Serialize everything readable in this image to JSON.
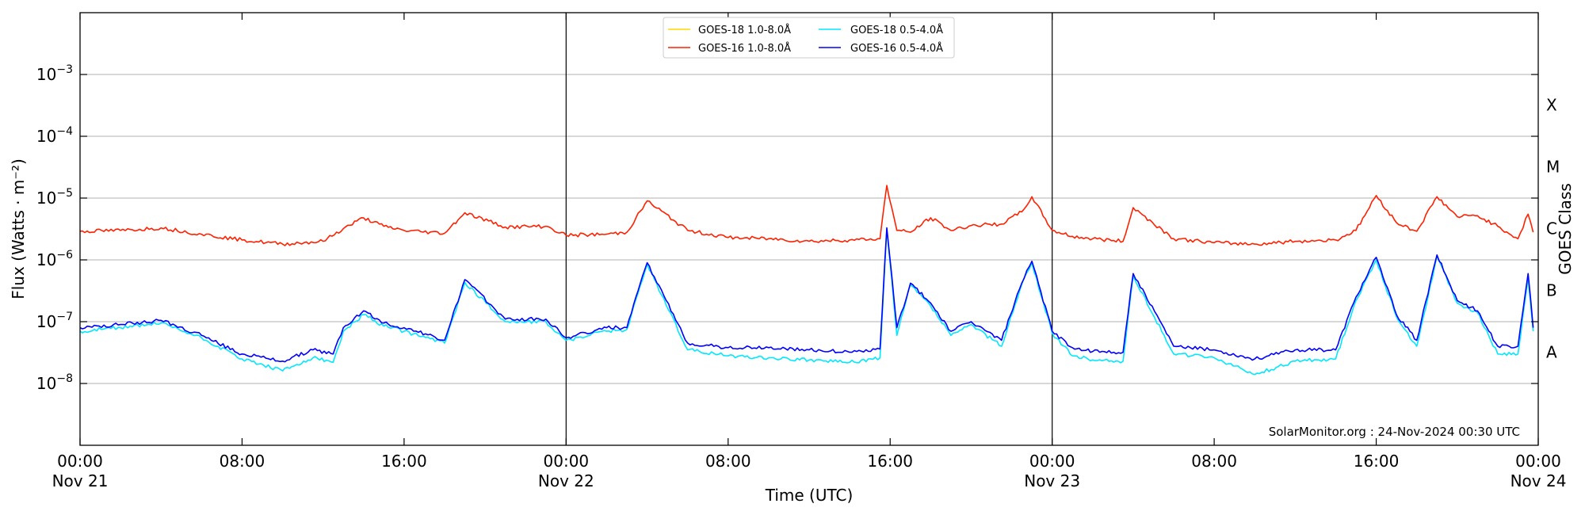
{
  "chart_data": {
    "type": "line",
    "title": "",
    "xlabel": "Time (UTC)",
    "ylabel": "Flux (Watts · m⁻²)",
    "ylabel_right": "GOES Class",
    "yscale": "log",
    "xlim": [
      "2024-11-21T00:00",
      "2024-11-24T00:00"
    ],
    "ylim": [
      1e-09,
      0.01
    ],
    "grid": "horizontal lines at each y decade",
    "legend_placement": "top-center",
    "x_ticks": [
      {
        "time": "2024-11-21T00:00",
        "line1": "00:00",
        "line2": "Nov 21"
      },
      {
        "time": "2024-11-21T08:00",
        "line1": "08:00",
        "line2": ""
      },
      {
        "time": "2024-11-21T16:00",
        "line1": "16:00",
        "line2": ""
      },
      {
        "time": "2024-11-22T00:00",
        "line1": "00:00",
        "line2": "Nov 22"
      },
      {
        "time": "2024-11-22T08:00",
        "line1": "08:00",
        "line2": ""
      },
      {
        "time": "2024-11-22T16:00",
        "line1": "16:00",
        "line2": ""
      },
      {
        "time": "2024-11-23T00:00",
        "line1": "00:00",
        "line2": "Nov 23"
      },
      {
        "time": "2024-11-23T08:00",
        "line1": "08:00",
        "line2": ""
      },
      {
        "time": "2024-11-23T16:00",
        "line1": "16:00",
        "line2": ""
      },
      {
        "time": "2024-11-24T00:00",
        "line1": "00:00",
        "line2": "Nov 24"
      }
    ],
    "y_ticks": [
      {
        "value": 1e-08,
        "mantissa": "10",
        "exp": "−8"
      },
      {
        "value": 1e-07,
        "mantissa": "10",
        "exp": "−7"
      },
      {
        "value": 1e-06,
        "mantissa": "10",
        "exp": "−6"
      },
      {
        "value": 1e-05,
        "mantissa": "10",
        "exp": "−5"
      },
      {
        "value": 0.0001,
        "mantissa": "10",
        "exp": "−4"
      },
      {
        "value": 0.001,
        "mantissa": "10",
        "exp": "−3"
      }
    ],
    "day_boundaries": [
      "2024-11-22T00:00",
      "2024-11-23T00:00"
    ],
    "goes_classes": [
      {
        "label": "A",
        "value": 3.2e-08
      },
      {
        "label": "B",
        "value": 3.2e-07
      },
      {
        "label": "C",
        "value": 3.2e-06
      },
      {
        "label": "M",
        "value": 3.2e-05
      },
      {
        "label": "X",
        "value": 0.00032
      }
    ],
    "series": [
      {
        "name": "GOES-18 1.0-8.0Å",
        "color": "#ffd700",
        "x": [],
        "values": []
      },
      {
        "name": "GOES-16 1.0-8.0Å",
        "color": "#ff2000",
        "x": [
          "2024-11-21T00:00",
          "2024-11-21T02:00",
          "2024-11-21T04:00",
          "2024-11-21T06:00",
          "2024-11-21T08:00",
          "2024-11-21T10:00",
          "2024-11-21T12:00",
          "2024-11-21T13:00",
          "2024-11-21T14:00",
          "2024-11-21T15:00",
          "2024-11-21T16:00",
          "2024-11-21T18:00",
          "2024-11-21T19:00",
          "2024-11-21T21:00",
          "2024-11-21T23:00",
          "2024-11-22T00:00",
          "2024-11-22T02:00",
          "2024-11-22T03:00",
          "2024-11-22T04:00",
          "2024-11-22T06:00",
          "2024-11-22T08:00",
          "2024-11-22T10:00",
          "2024-11-22T12:00",
          "2024-11-22T14:00",
          "2024-11-22T15:30",
          "2024-11-22T15:50",
          "2024-11-22T16:20",
          "2024-11-22T17:00",
          "2024-11-22T18:00",
          "2024-11-22T19:00",
          "2024-11-22T20:00",
          "2024-11-22T21:30",
          "2024-11-22T22:30",
          "2024-11-22T23:00",
          "2024-11-23T00:00",
          "2024-11-23T01:00",
          "2024-11-23T02:00",
          "2024-11-23T03:30",
          "2024-11-23T04:00",
          "2024-11-23T06:00",
          "2024-11-23T08:00",
          "2024-11-23T10:00",
          "2024-11-23T12:00",
          "2024-11-23T14:00",
          "2024-11-23T15:00",
          "2024-11-23T16:00",
          "2024-11-23T17:00",
          "2024-11-23T18:00",
          "2024-11-23T19:00",
          "2024-11-23T20:00",
          "2024-11-23T21:00",
          "2024-11-23T22:00",
          "2024-11-23T23:00",
          "2024-11-23T23:30",
          "2024-11-23T23:45"
        ],
        "values": [
          2.9e-06,
          3e-06,
          3.3e-06,
          2.6e-06,
          2.1e-06,
          1.8e-06,
          2e-06,
          3.2e-06,
          4.8e-06,
          3.5e-06,
          3e-06,
          2.7e-06,
          5.8e-06,
          3.4e-06,
          3.5e-06,
          2.5e-06,
          2.6e-06,
          2.8e-06,
          9e-06,
          3e-06,
          2.3e-06,
          2.2e-06,
          2e-06,
          2.1e-06,
          2.2e-06,
          1.6e-05,
          3e-06,
          2.8e-06,
          4.8e-06,
          3e-06,
          3.6e-06,
          3.8e-06,
          6e-06,
          1.05e-05,
          3e-06,
          2.4e-06,
          2.2e-06,
          2e-06,
          7e-06,
          2.2e-06,
          1.9e-06,
          1.8e-06,
          2e-06,
          2.1e-06,
          3e-06,
          1.1e-05,
          4e-06,
          2.9e-06,
          1.05e-05,
          5e-06,
          5.2e-06,
          3.5e-06,
          2.2e-06,
          5.5e-06,
          2.8e-06
        ]
      },
      {
        "name": "GOES-18 0.5-4.0Å",
        "color": "#00e8ff",
        "x": [
          "2024-11-21T00:00",
          "2024-11-21T02:00",
          "2024-11-21T04:00",
          "2024-11-21T06:00",
          "2024-11-21T08:00",
          "2024-11-21T10:00",
          "2024-11-21T11:30",
          "2024-11-21T12:30",
          "2024-11-21T13:00",
          "2024-11-21T14:00",
          "2024-11-21T15:00",
          "2024-11-21T16:00",
          "2024-11-21T18:00",
          "2024-11-21T19:00",
          "2024-11-21T21:00",
          "2024-11-21T23:00",
          "2024-11-22T00:00",
          "2024-11-22T02:00",
          "2024-11-22T03:00",
          "2024-11-22T04:00",
          "2024-11-22T06:00",
          "2024-11-22T08:00",
          "2024-11-22T10:00",
          "2024-11-22T12:00",
          "2024-11-22T14:00",
          "2024-11-22T15:30",
          "2024-11-22T15:50",
          "2024-11-22T16:20",
          "2024-11-22T17:00",
          "2024-11-22T18:00",
          "2024-11-22T19:00",
          "2024-11-22T20:00",
          "2024-11-22T21:30",
          "2024-11-22T22:30",
          "2024-11-22T23:00",
          "2024-11-23T00:00",
          "2024-11-23T01:00",
          "2024-11-23T02:00",
          "2024-11-23T03:30",
          "2024-11-23T04:00",
          "2024-11-23T06:00",
          "2024-11-23T08:00",
          "2024-11-23T10:00",
          "2024-11-23T12:00",
          "2024-11-23T14:00",
          "2024-11-23T15:00",
          "2024-11-23T16:00",
          "2024-11-23T17:00",
          "2024-11-23T18:00",
          "2024-11-23T19:00",
          "2024-11-23T20:00",
          "2024-11-23T21:00",
          "2024-11-23T22:00",
          "2024-11-23T23:00",
          "2024-11-23T23:30",
          "2024-11-23T23:45"
        ],
        "values": [
          7e-08,
          8e-08,
          9.5e-08,
          5.5e-08,
          2.5e-08,
          1.6e-08,
          2.6e-08,
          2.2e-08,
          7e-08,
          1.3e-07,
          8.5e-08,
          7e-08,
          4.5e-08,
          4.3e-07,
          1e-07,
          1e-07,
          5e-08,
          7e-08,
          7.5e-08,
          8.5e-07,
          3.5e-08,
          2.8e-08,
          2.6e-08,
          2.4e-08,
          2.2e-08,
          2.6e-08,
          3.1e-06,
          6e-08,
          4e-07,
          1.8e-07,
          6e-08,
          9e-08,
          4e-08,
          4e-07,
          9e-07,
          6.5e-08,
          2.8e-08,
          2.4e-08,
          2.3e-08,
          5.5e-07,
          3e-08,
          2.6e-08,
          1.4e-08,
          2.3e-08,
          2.5e-08,
          2.2e-07,
          1e-06,
          1.2e-07,
          4e-08,
          1.15e-06,
          2e-07,
          1.4e-07,
          3e-08,
          3e-08,
          5e-07,
          7e-08
        ]
      },
      {
        "name": "GOES-16 0.5-4.0Å",
        "color": "#0000ff",
        "x": [
          "2024-11-21T00:00",
          "2024-11-21T02:00",
          "2024-11-21T04:00",
          "2024-11-21T06:00",
          "2024-11-21T08:00",
          "2024-11-21T10:00",
          "2024-11-21T11:30",
          "2024-11-21T12:30",
          "2024-11-21T13:00",
          "2024-11-21T14:00",
          "2024-11-21T15:00",
          "2024-11-21T16:00",
          "2024-11-21T18:00",
          "2024-11-21T19:00",
          "2024-11-21T21:00",
          "2024-11-21T23:00",
          "2024-11-22T00:00",
          "2024-11-22T02:00",
          "2024-11-22T03:00",
          "2024-11-22T04:00",
          "2024-11-22T06:00",
          "2024-11-22T08:00",
          "2024-11-22T10:00",
          "2024-11-22T12:00",
          "2024-11-22T14:00",
          "2024-11-22T15:30",
          "2024-11-22T15:50",
          "2024-11-22T16:20",
          "2024-11-22T17:00",
          "2024-11-22T18:00",
          "2024-11-22T19:00",
          "2024-11-22T20:00",
          "2024-11-22T21:30",
          "2024-11-22T22:30",
          "2024-11-22T23:00",
          "2024-11-23T00:00",
          "2024-11-23T01:00",
          "2024-11-23T02:00",
          "2024-11-23T03:30",
          "2024-11-23T04:00",
          "2024-11-23T06:00",
          "2024-11-23T08:00",
          "2024-11-23T10:00",
          "2024-11-23T12:00",
          "2024-11-23T14:00",
          "2024-11-23T15:00",
          "2024-11-23T16:00",
          "2024-11-23T17:00",
          "2024-11-23T18:00",
          "2024-11-23T19:00",
          "2024-11-23T20:00",
          "2024-11-23T21:00",
          "2024-11-23T22:00",
          "2024-11-23T23:00",
          "2024-11-23T23:30",
          "2024-11-23T23:45"
        ],
        "values": [
          8e-08,
          9e-08,
          1.05e-07,
          6e-08,
          3e-08,
          2.3e-08,
          3.5e-08,
          3e-08,
          8e-08,
          1.5e-07,
          9.5e-08,
          8e-08,
          5e-08,
          4.8e-07,
          1.1e-07,
          1.1e-07,
          5.5e-08,
          8e-08,
          8e-08,
          9e-07,
          4.5e-08,
          3.8e-08,
          3.8e-08,
          3.5e-08,
          3.2e-08,
          3.6e-08,
          3.3e-06,
          8e-08,
          4.2e-07,
          2e-07,
          7e-08,
          1e-07,
          5e-08,
          4.2e-07,
          9.5e-07,
          7e-08,
          3.8e-08,
          3.3e-08,
          3.2e-08,
          6e-07,
          4e-08,
          3.5e-08,
          2.5e-08,
          3.5e-08,
          3.5e-08,
          2.5e-07,
          1.1e-06,
          1.3e-07,
          5e-08,
          1.2e-06,
          2.2e-07,
          1.5e-07,
          4e-08,
          4e-08,
          6e-07,
          8e-08
        ]
      }
    ]
  },
  "credit": "SolarMonitor.org : 24-Nov-2024 00:30 UTC"
}
